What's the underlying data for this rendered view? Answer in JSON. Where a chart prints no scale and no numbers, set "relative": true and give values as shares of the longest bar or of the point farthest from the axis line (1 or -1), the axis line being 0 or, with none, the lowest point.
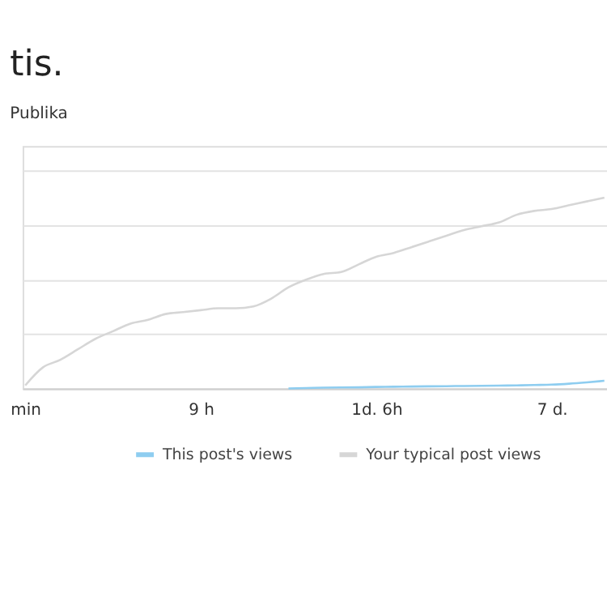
{
  "chart_data": {
    "type": "line",
    "title": "tis.",
    "subtitle": "Publika",
    "relative": true,
    "grid": "y",
    "legend": "bottom",
    "categories": [
      "min",
      null,
      null,
      null,
      null,
      null,
      null,
      null,
      null,
      null,
      "9 h",
      null,
      null,
      null,
      null,
      null,
      null,
      null,
      null,
      null,
      "1d. 6h",
      null,
      null,
      null,
      null,
      null,
      null,
      null,
      null,
      null,
      "7 d.",
      null,
      null,
      null
    ],
    "series": [
      {
        "name": "This post's views",
        "color": "#8ecdf0",
        "values": [
          null,
          null,
          null,
          null,
          null,
          null,
          null,
          null,
          null,
          null,
          null,
          null,
          null,
          null,
          null,
          0,
          0.002,
          0.004,
          0.005,
          0.006,
          0.008,
          0.009,
          0.01,
          0.011,
          0.012,
          0.013,
          0.014,
          0.015,
          0.016,
          0.018,
          0.02,
          0.025,
          0.032,
          0.04
        ]
      },
      {
        "name": "Your typical post views",
        "color": "#d6d6d6",
        "values": [
          0.016,
          0.11,
          0.15,
          0.205,
          0.26,
          0.3,
          0.34,
          0.36,
          0.39,
          0.4,
          0.41,
          0.42,
          0.42,
          0.43,
          0.47,
          0.53,
          0.57,
          0.6,
          0.61,
          0.65,
          0.69,
          0.71,
          0.74,
          0.77,
          0.8,
          0.83,
          0.85,
          0.87,
          0.91,
          0.93,
          0.94,
          0.96,
          0.98,
          1
        ]
      }
    ]
  }
}
